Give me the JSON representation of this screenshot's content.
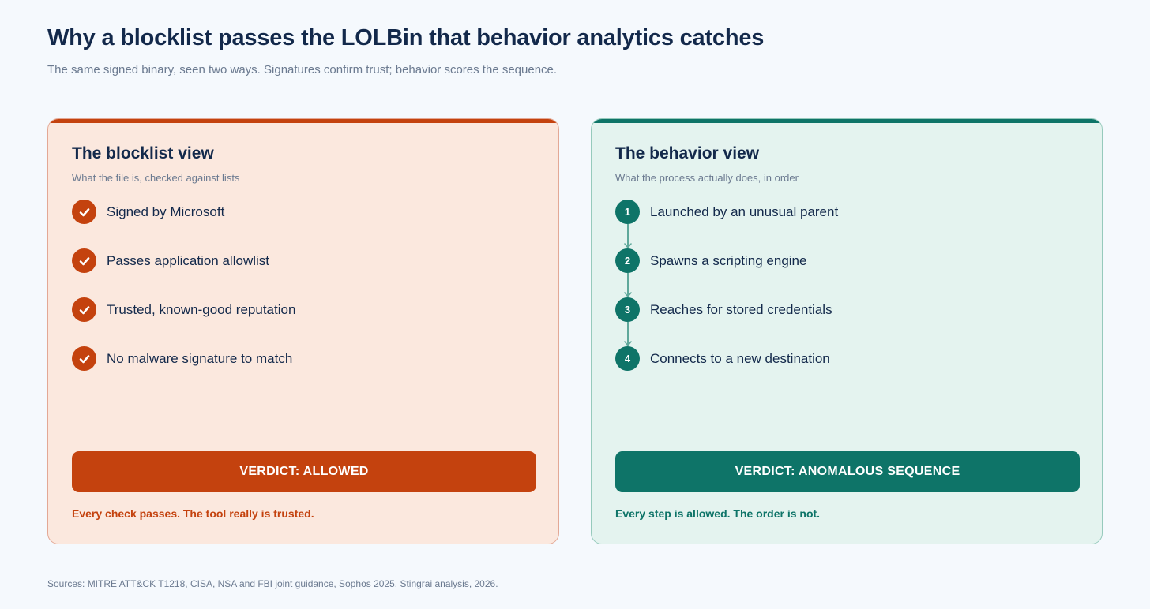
{
  "header": {
    "title": "Why a blocklist passes the LOLBin that behavior analytics catches",
    "subtitle": "The same signed binary, seen two ways. Signatures confirm trust; behavior scores the sequence."
  },
  "left_panel": {
    "title": "The blocklist view",
    "subtitle": "What the file is, checked against lists",
    "items": [
      {
        "label": "Signed by Microsoft"
      },
      {
        "label": "Passes application allowlist"
      },
      {
        "label": "Trusted, known-good reputation"
      },
      {
        "label": "No malware signature to match"
      }
    ],
    "verdict": "VERDICT: ALLOWED",
    "note": "Every check passes. The tool really is trusted."
  },
  "right_panel": {
    "title": "The behavior view",
    "subtitle": "What the process actually does, in order",
    "items": [
      {
        "number": "1",
        "label": "Launched by an unusual parent"
      },
      {
        "number": "2",
        "label": "Spawns a scripting engine"
      },
      {
        "number": "3",
        "label": "Reaches for stored credentials"
      },
      {
        "number": "4",
        "label": "Connects to a new destination"
      }
    ],
    "verdict": "VERDICT: ANOMALOUS SEQUENCE",
    "note": "Every step is allowed. The order is not."
  },
  "footer": {
    "sources": "Sources: MITRE ATT&CK T1218, CISA, NSA and FBI joint guidance, Sophos 2025. Stingrai analysis, 2026."
  },
  "colors": {
    "blocklist_accent": "#c4420e",
    "behavior_accent": "#0e7468",
    "blocklist_bg": "#fbe8de",
    "behavior_bg": "#e4f3ef"
  },
  "icons": {
    "left_item_icon": "checkmark-circle-icon",
    "right_connector_icon": "arrow-down-icon"
  }
}
